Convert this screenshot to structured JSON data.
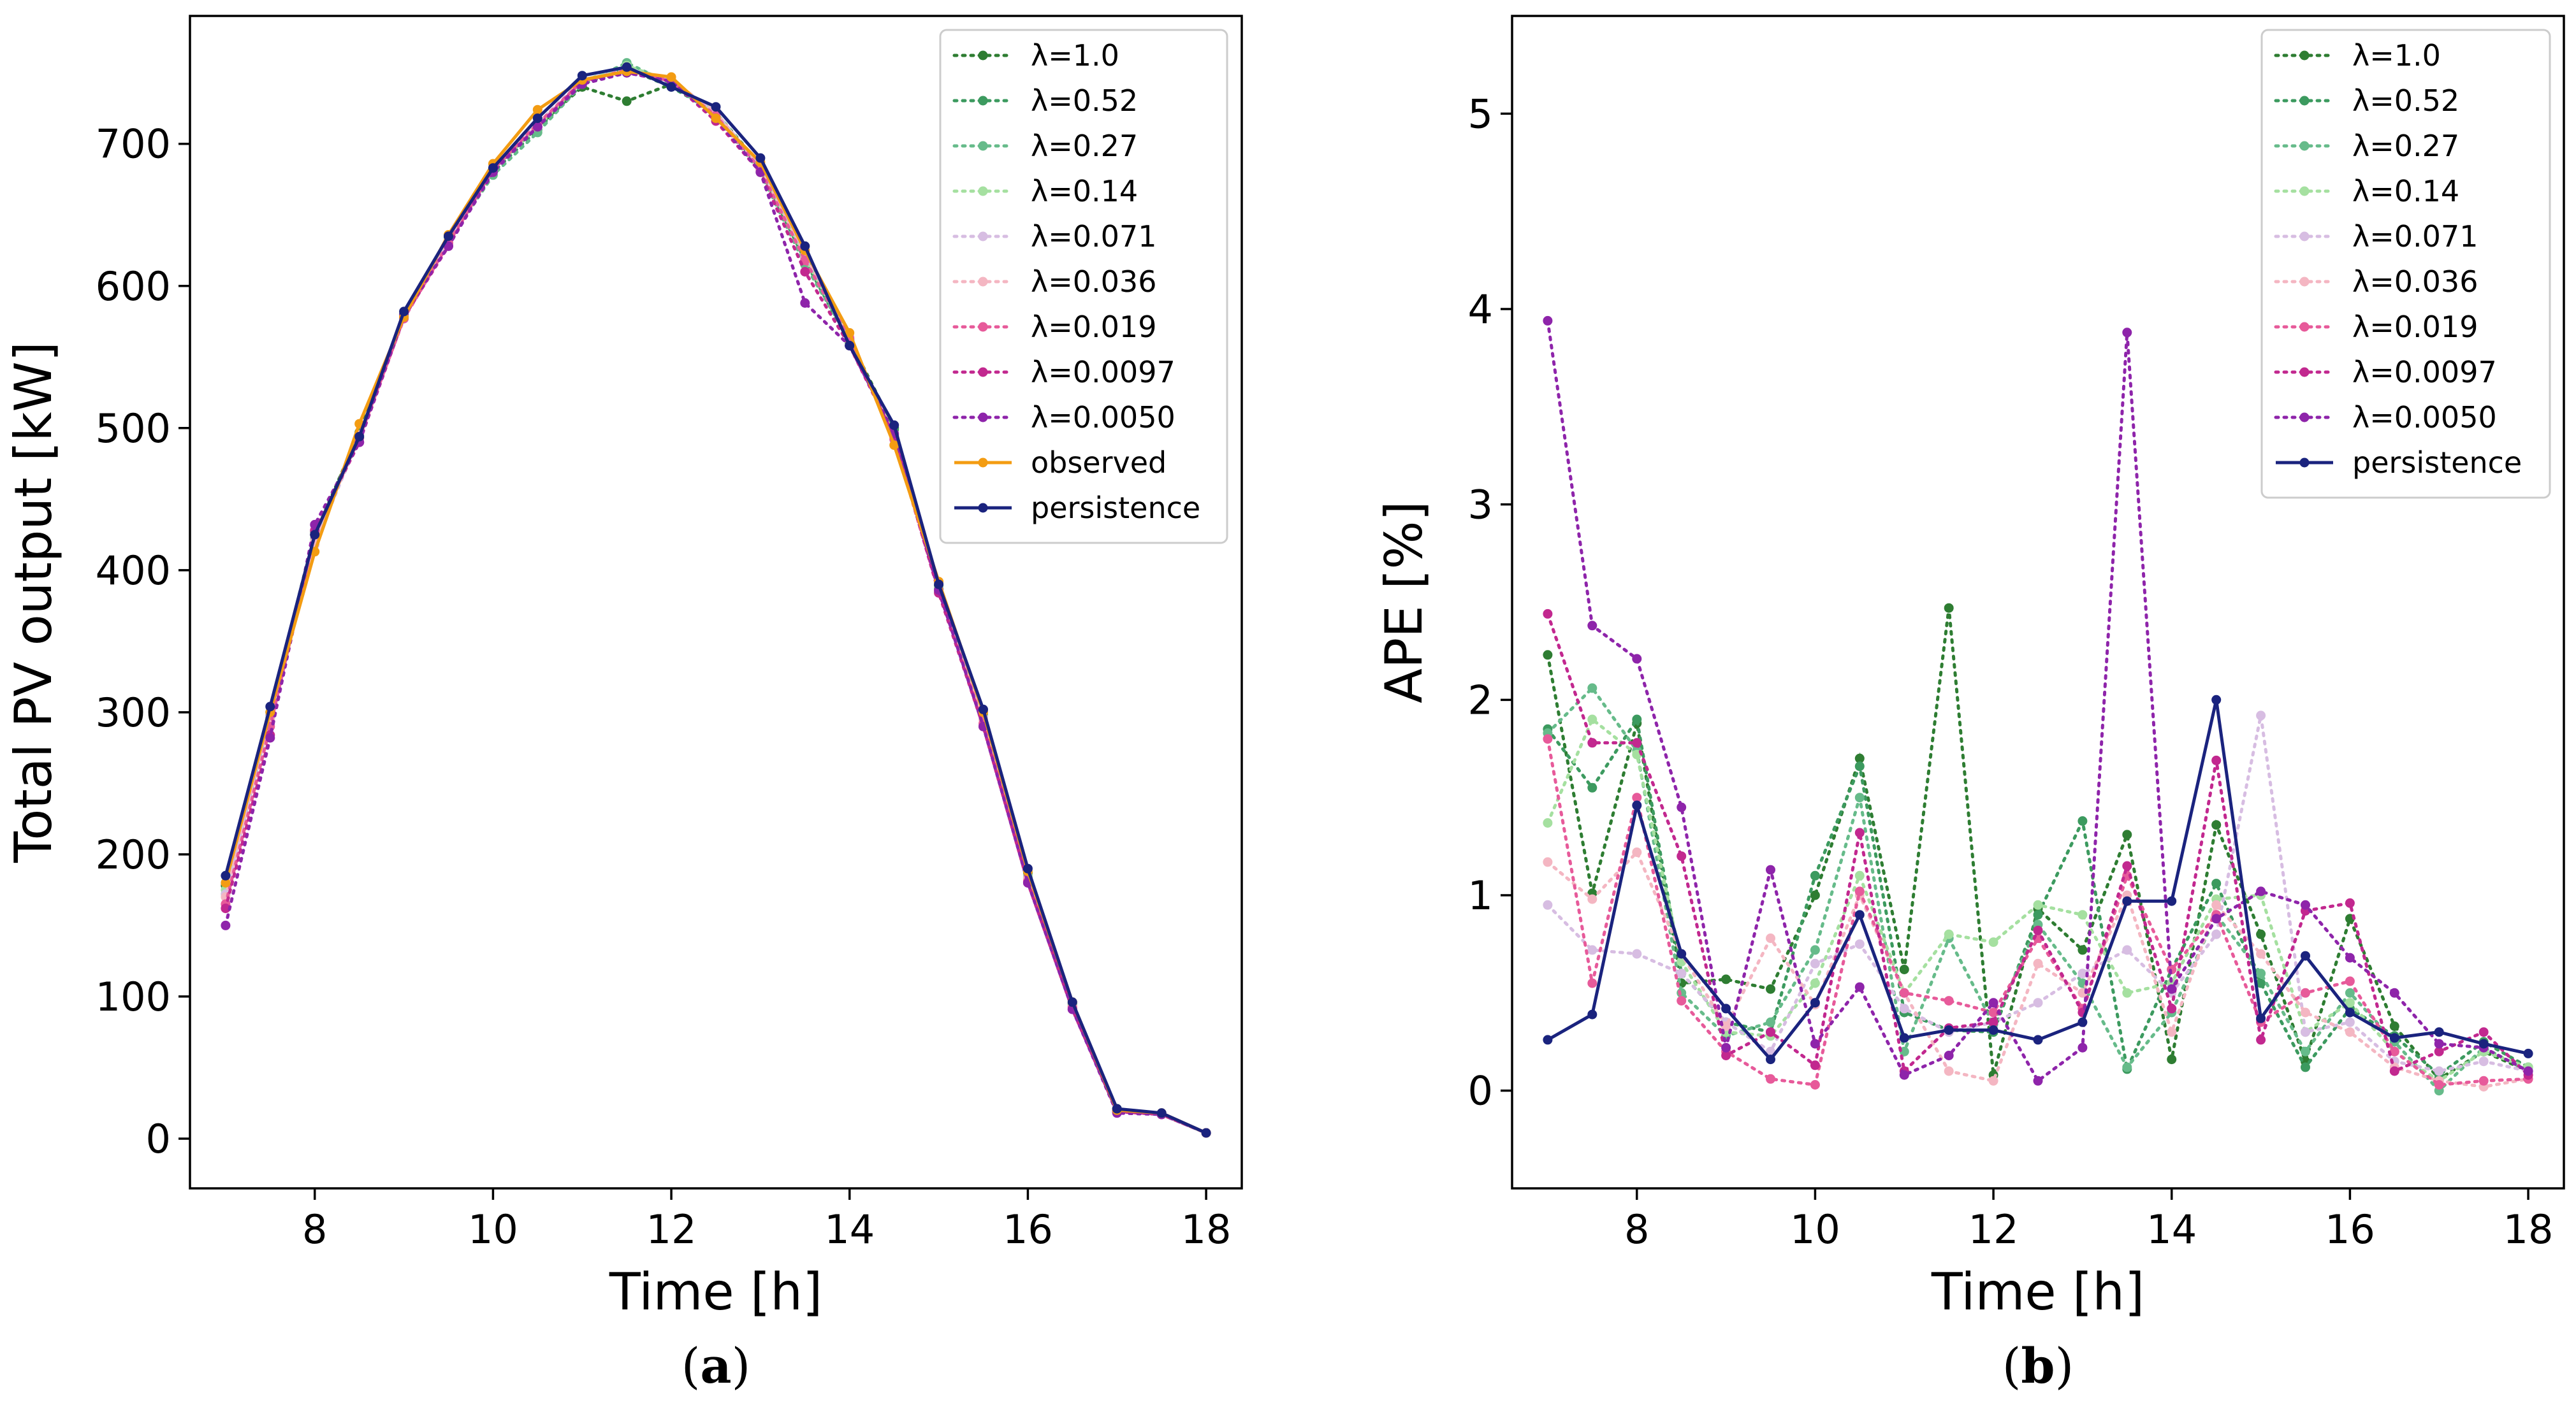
{
  "chart_data": [
    {
      "type": "line",
      "panel": "a",
      "panel_label": "(a)",
      "xlabel": "Time [h]",
      "ylabel": "Total PV output [kW]",
      "xlim": [
        6.6,
        18.4
      ],
      "ylim": [
        -35,
        790
      ],
      "xticks": [
        8,
        10,
        12,
        14,
        16,
        18
      ],
      "yticks": [
        0,
        100,
        200,
        300,
        400,
        500,
        600,
        700
      ],
      "legend_position": "top-right",
      "x": [
        7,
        7.5,
        8,
        8.5,
        9,
        9.5,
        10,
        10.5,
        11,
        11.5,
        12,
        12.5,
        13,
        13.5,
        14,
        14.5,
        15,
        15.5,
        16,
        16.5,
        17,
        17.5,
        18
      ],
      "series": [
        {
          "name": "λ=1.0",
          "color": "#2e7d32",
          "style": "dotted",
          "values": [
            178,
            298,
            425,
            497,
            580,
            632,
            682,
            712,
            740,
            730,
            742,
            722,
            685,
            622,
            562,
            500,
            389,
            298,
            187,
            95,
            21,
            17,
            4
          ]
        },
        {
          "name": "λ=0.52",
          "color": "#3c9a5f",
          "style": "dotted",
          "values": [
            180,
            300,
            427,
            495,
            580,
            634,
            680,
            710,
            742,
            753,
            740,
            722,
            682,
            618,
            560,
            499,
            388,
            298,
            186,
            94,
            21,
            17,
            4
          ]
        },
        {
          "name": "λ=0.27",
          "color": "#66bb8a",
          "style": "dotted",
          "values": [
            172,
            296,
            420,
            493,
            578,
            631,
            678,
            708,
            742,
            757,
            742,
            720,
            680,
            615,
            562,
            495,
            387,
            296,
            184,
            93,
            20,
            17,
            4
          ]
        },
        {
          "name": "λ=0.14",
          "color": "#a5e0a0",
          "style": "dotted",
          "values": [
            175,
            300,
            422,
            495,
            580,
            633,
            682,
            712,
            744,
            755,
            744,
            722,
            684,
            620,
            562,
            495,
            388,
            297,
            185,
            94,
            20,
            17,
            4
          ]
        },
        {
          "name": "λ=0.071",
          "color": "#d7bde2",
          "style": "dotted",
          "values": [
            172,
            298,
            418,
            494,
            578,
            632,
            682,
            714,
            745,
            752,
            745,
            722,
            684,
            620,
            563,
            493,
            386,
            296,
            183,
            93,
            20,
            17,
            4
          ]
        },
        {
          "name": "λ=0.036",
          "color": "#f4b6c2",
          "style": "dotted",
          "values": [
            170,
            295,
            420,
            495,
            578,
            632,
            682,
            714,
            744,
            752,
            745,
            722,
            683,
            622,
            564,
            494,
            385,
            295,
            183,
            93,
            20,
            17,
            4
          ]
        },
        {
          "name": "λ=0.019",
          "color": "#e75a9a",
          "style": "dotted",
          "values": [
            165,
            290,
            425,
            493,
            577,
            630,
            682,
            714,
            744,
            752,
            744,
            720,
            682,
            618,
            563,
            492,
            385,
            292,
            181,
            92,
            19,
            17,
            4
          ]
        },
        {
          "name": "λ=0.0097",
          "color": "#c2288f",
          "style": "dotted",
          "values": [
            162,
            284,
            428,
            490,
            578,
            628,
            682,
            712,
            744,
            750,
            744,
            716,
            680,
            610,
            558,
            494,
            384,
            290,
            180,
            91,
            19,
            17,
            4
          ]
        },
        {
          "name": "λ=0.0050",
          "color": "#8e24aa",
          "style": "dotted",
          "values": [
            150,
            282,
            432,
            490,
            580,
            628,
            680,
            712,
            742,
            750,
            744,
            718,
            680,
            588,
            558,
            496,
            386,
            290,
            180,
            91,
            18,
            17,
            4
          ]
        },
        {
          "name": "observed",
          "color": "#f39c12",
          "style": "solid",
          "values": [
            180,
            300,
            413,
            503,
            578,
            636,
            686,
            724,
            745,
            751,
            747,
            718,
            687,
            625,
            567,
            488,
            392,
            300,
            188,
            96,
            20,
            18,
            4
          ]
        },
        {
          "name": "persistence",
          "color": "#1a237e",
          "style": "solid",
          "values": [
            185,
            304,
            425,
            494,
            582,
            635,
            683,
            718,
            748,
            754,
            740,
            726,
            690,
            628,
            558,
            502,
            390,
            302,
            190,
            96,
            21,
            18,
            4
          ]
        }
      ]
    },
    {
      "type": "line",
      "panel": "b",
      "panel_label": "(b)",
      "xlabel": "Time [h]",
      "ylabel": "APE [%]",
      "xlim": [
        6.6,
        18.4
      ],
      "ylim": [
        -0.5,
        5.5
      ],
      "xticks": [
        8,
        10,
        12,
        14,
        16,
        18
      ],
      "yticks": [
        0,
        1,
        2,
        3,
        4,
        5
      ],
      "legend_position": "top-right",
      "x": [
        7,
        7.5,
        8,
        8.5,
        9,
        9.5,
        10,
        10.5,
        11,
        11.5,
        12,
        12.5,
        13,
        13.5,
        14,
        14.5,
        15,
        15.5,
        16,
        16.5,
        17,
        17.5,
        18
      ],
      "series": [
        {
          "name": "λ=1.0",
          "color": "#2e7d32",
          "style": "dotted",
          "values": [
            2.23,
            1.01,
            1.88,
            0.55,
            0.57,
            0.52,
            1.0,
            1.7,
            0.62,
            2.47,
            0.08,
            0.93,
            0.72,
            1.31,
            0.16,
            1.36,
            0.8,
            0.15,
            0.88,
            0.33,
            0.06,
            0.2,
            0.1
          ]
        },
        {
          "name": "λ=0.52",
          "color": "#3c9a5f",
          "style": "dotted",
          "values": [
            1.85,
            1.55,
            1.9,
            0.6,
            0.35,
            0.3,
            1.1,
            1.66,
            0.4,
            0.31,
            0.3,
            0.9,
            1.38,
            0.11,
            0.62,
            1.06,
            0.55,
            0.12,
            0.42,
            0.28,
            0.08,
            0.25,
            0.12
          ]
        },
        {
          "name": "λ=0.27",
          "color": "#66bb8a",
          "style": "dotted",
          "values": [
            1.83,
            2.06,
            1.74,
            0.5,
            0.28,
            0.35,
            0.72,
            1.5,
            0.2,
            0.78,
            0.34,
            0.85,
            0.55,
            0.12,
            0.4,
            0.9,
            0.6,
            0.2,
            0.5,
            0.25,
            0.0,
            0.22,
            0.1
          ]
        },
        {
          "name": "λ=0.14",
          "color": "#a5e0a0",
          "style": "dotted",
          "values": [
            1.37,
            1.9,
            1.72,
            0.66,
            0.3,
            0.28,
            0.55,
            1.1,
            0.5,
            0.8,
            0.76,
            0.95,
            0.9,
            0.5,
            0.55,
            0.98,
            1.0,
            0.3,
            0.45,
            0.2,
            0.05,
            0.2,
            0.12
          ]
        },
        {
          "name": "λ=0.071",
          "color": "#d7bde2",
          "style": "dotted",
          "values": [
            0.95,
            0.72,
            0.7,
            0.6,
            0.35,
            0.2,
            0.65,
            0.75,
            0.42,
            0.3,
            0.35,
            0.45,
            0.6,
            0.72,
            0.5,
            0.8,
            1.92,
            0.3,
            0.35,
            0.15,
            0.1,
            0.15,
            0.1
          ]
        },
        {
          "name": "λ=0.036",
          "color": "#f4b6c2",
          "style": "dotted",
          "values": [
            1.17,
            0.98,
            1.22,
            0.7,
            0.33,
            0.78,
            0.44,
            1.0,
            0.5,
            0.1,
            0.05,
            0.65,
            0.5,
            1.0,
            0.3,
            0.95,
            0.7,
            0.4,
            0.3,
            0.12,
            0.05,
            0.02,
            0.06
          ]
        },
        {
          "name": "λ=0.019",
          "color": "#e75a9a",
          "style": "dotted",
          "values": [
            1.8,
            0.55,
            1.5,
            0.46,
            0.2,
            0.06,
            0.03,
            1.02,
            0.5,
            0.46,
            0.4,
            0.78,
            0.42,
            1.1,
            0.62,
            0.9,
            0.35,
            0.5,
            0.56,
            0.2,
            0.03,
            0.05,
            0.06
          ]
        },
        {
          "name": "λ=0.0097",
          "color": "#c2288f",
          "style": "dotted",
          "values": [
            2.44,
            1.78,
            1.78,
            1.2,
            0.18,
            0.3,
            0.13,
            1.32,
            0.1,
            0.32,
            0.35,
            0.82,
            0.4,
            1.15,
            0.42,
            1.69,
            0.26,
            0.92,
            0.96,
            0.1,
            0.2,
            0.3,
            0.08
          ]
        },
        {
          "name": "λ=0.0050",
          "color": "#8e24aa",
          "style": "dotted",
          "values": [
            3.94,
            2.38,
            2.21,
            1.45,
            0.22,
            1.13,
            0.24,
            0.53,
            0.08,
            0.18,
            0.45,
            0.05,
            0.22,
            3.88,
            0.52,
            0.88,
            1.02,
            0.95,
            0.68,
            0.5,
            0.24,
            0.22,
            0.1
          ]
        },
        {
          "name": "persistence",
          "color": "#1a237e",
          "style": "solid",
          "values": [
            0.26,
            0.39,
            1.46,
            0.7,
            0.42,
            0.16,
            0.45,
            0.9,
            0.27,
            0.31,
            0.31,
            0.26,
            0.35,
            0.97,
            0.97,
            2.0,
            0.37,
            0.69,
            0.4,
            0.27,
            0.3,
            0.24,
            0.19
          ]
        }
      ]
    }
  ]
}
